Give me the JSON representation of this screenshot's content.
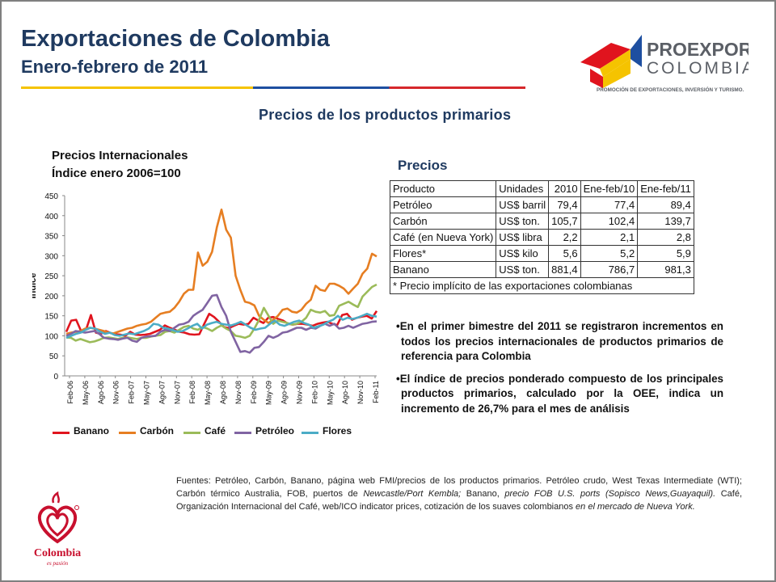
{
  "header": {
    "title": "Exportaciones de Colombia",
    "subtitle": "Enero-febrero de 2011",
    "section_title": "Precios de los productos primarios"
  },
  "brand": {
    "proexport_line1": "PROEXPORT",
    "proexport_line2": "COLOMBIA",
    "proexport_tagline": "PROMOCIÓN DE EXPORTACIONES, INVERSIÓN Y TURISMO.",
    "colombia_word": "Colombia",
    "colombia_tagline": "es pasión"
  },
  "colors": {
    "title": "#1f3a60",
    "banano": "#e0141e",
    "carbon": "#e67e22",
    "cafe": "#9bbb59",
    "petroleo": "#8064a2",
    "flores": "#4bacc6"
  },
  "chart_data": {
    "type": "line",
    "title_line1": "Precios Internacionales",
    "title_line2": "Índice enero 2006=100",
    "ylabel": "Índice",
    "ylim": [
      0,
      450
    ],
    "yticks": [
      0,
      50,
      100,
      150,
      200,
      250,
      300,
      350,
      400,
      450
    ],
    "grid": false,
    "legend_position": "bottom",
    "x_tick_labels": [
      "Feb-06",
      "May-06",
      "Ago-06",
      "Nov-06",
      "Feb-07",
      "May-07",
      "Ago-07",
      "Nov-07",
      "Feb-08",
      "May-08",
      "Ago-08",
      "Nov-08",
      "Feb-09",
      "May-09",
      "Ago-09",
      "Nov-09",
      "Feb-10",
      "May-10",
      "Ago-10",
      "Nov-10",
      "Feb-11"
    ],
    "series": [
      {
        "name": "Banano",
        "color": "#e0141e",
        "values": [
          110,
          138,
          140,
          112,
          115,
          152,
          108,
          105,
          112,
          107,
          104,
          103,
          100,
          110,
          103,
          102,
          103,
          105,
          110,
          115,
          126,
          120,
          115,
          110,
          108,
          104,
          103,
          104,
          130,
          155,
          147,
          135,
          122,
          119,
          125,
          130,
          128,
          130,
          145,
          138,
          132,
          145,
          147,
          142,
          138,
          130,
          128,
          130,
          130,
          128,
          125,
          130,
          133,
          135,
          130,
          127,
          152,
          155,
          140,
          145,
          148,
          150,
          143,
          162
        ]
      },
      {
        "name": "Carbón",
        "color": "#e67e22",
        "values": [
          105,
          108,
          110,
          112,
          118,
          120,
          118,
          115,
          112,
          108,
          106,
          110,
          114,
          118,
          120,
          125,
          128,
          130,
          135,
          145,
          155,
          158,
          160,
          170,
          185,
          205,
          215,
          215,
          308,
          275,
          285,
          310,
          370,
          415,
          365,
          345,
          250,
          215,
          185,
          182,
          176,
          150,
          140,
          132,
          140,
          150,
          165,
          168,
          160,
          158,
          165,
          180,
          190,
          225,
          215,
          212,
          230,
          230,
          225,
          218,
          205,
          218,
          230,
          255,
          268,
          305,
          298
        ]
      },
      {
        "name": "Café",
        "color": "#9bbb59",
        "values": [
          96,
          95,
          88,
          92,
          88,
          84,
          86,
          90,
          95,
          96,
          94,
          92,
          95,
          96,
          94,
          92,
          95,
          95,
          98,
          100,
          102,
          110,
          112,
          108,
          115,
          122,
          125,
          118,
          115,
          122,
          118,
          112,
          120,
          126,
          118,
          112,
          100,
          98,
          95,
          100,
          118,
          140,
          170,
          150,
          130,
          138,
          135,
          132,
          128,
          130,
          135,
          145,
          165,
          160,
          158,
          162,
          150,
          152,
          175,
          180,
          185,
          178,
          172,
          198,
          210,
          222,
          228
        ]
      },
      {
        "name": "Petróleo",
        "color": "#8064a2",
        "values": [
          100,
          105,
          112,
          110,
          108,
          110,
          112,
          105,
          95,
          93,
          92,
          90,
          93,
          95,
          88,
          85,
          95,
          98,
          99,
          100,
          110,
          115,
          112,
          120,
          128,
          130,
          135,
          150,
          158,
          165,
          182,
          200,
          202,
          172,
          150,
          110,
          85,
          60,
          62,
          58,
          70,
          72,
          85,
          100,
          95,
          100,
          108,
          110,
          115,
          120,
          120,
          115,
          120,
          118,
          125,
          130,
          125,
          130,
          118,
          120,
          125,
          120,
          125,
          130,
          132,
          135,
          136
        ]
      },
      {
        "name": "Flores",
        "color": "#4bacc6",
        "values": [
          95,
          100,
          105,
          108,
          115,
          120,
          118,
          110,
          105,
          108,
          102,
          100,
          103,
          106,
          104,
          108,
          112,
          118,
          130,
          128,
          120,
          118,
          114,
          110,
          112,
          118,
          125,
          130,
          118,
          128,
          132,
          135,
          130,
          128,
          126,
          130,
          135,
          128,
          120,
          115,
          118,
          120,
          130,
          138,
          128,
          125,
          130,
          135,
          138,
          132,
          128,
          120,
          124,
          128,
          135,
          140,
          150,
          140,
          145,
          142,
          145,
          150,
          155,
          150,
          148
        ]
      }
    ]
  },
  "prices": {
    "heading": "Precios",
    "columns": [
      "Producto",
      "Unidades",
      "2010",
      "Ene-feb/10",
      "Ene-feb/11"
    ],
    "rows": [
      [
        "Petróleo",
        "US$ barril",
        "79,4",
        "77,4",
        "89,4"
      ],
      [
        "Carbón",
        "US$ ton.",
        "105,7",
        "102,4",
        "139,7"
      ],
      [
        "Café (en Nueva York)",
        "US$ libra",
        "2,2",
        "2,1",
        "2,8"
      ],
      [
        "Flores*",
        "US$ kilo",
        "5,6",
        "5,2",
        "5,9"
      ],
      [
        "Banano",
        "US$ ton.",
        "881,4",
        "786,7",
        "981,3"
      ]
    ],
    "footnote": "* Precio implícito de las exportaciones colombianas"
  },
  "bullets": [
    "En el primer bimestre del 2011 se registraron incrementos en todos los precios internacionales de productos primarios de referencia para Colombia",
    "El índice de precios ponderado compuesto de los principales productos primarios, calculado por la OEE, indica un incremento de 26,7% para el mes de análisis"
  ],
  "sources": {
    "part1": "Fuentes: Petróleo, Carbón, Banano, página web FMI/precios de los productos primarios. Petróleo crudo, West Texas Intermediate (WTI); Carbón térmico Australia, FOB, puertos de ",
    "part2_italic": "Newcastle/Port Kembla;",
    "part3": " Banano, ",
    "part4_italic": "precio FOB U.S. ports (Sopisco News,Guayaquil).",
    "part5": " Café, Organización Internacional del Café, web/ICO indicator prices, cotización  de los suaves colombianos ",
    "part6_italic": "en el mercado de Nueva York."
  }
}
